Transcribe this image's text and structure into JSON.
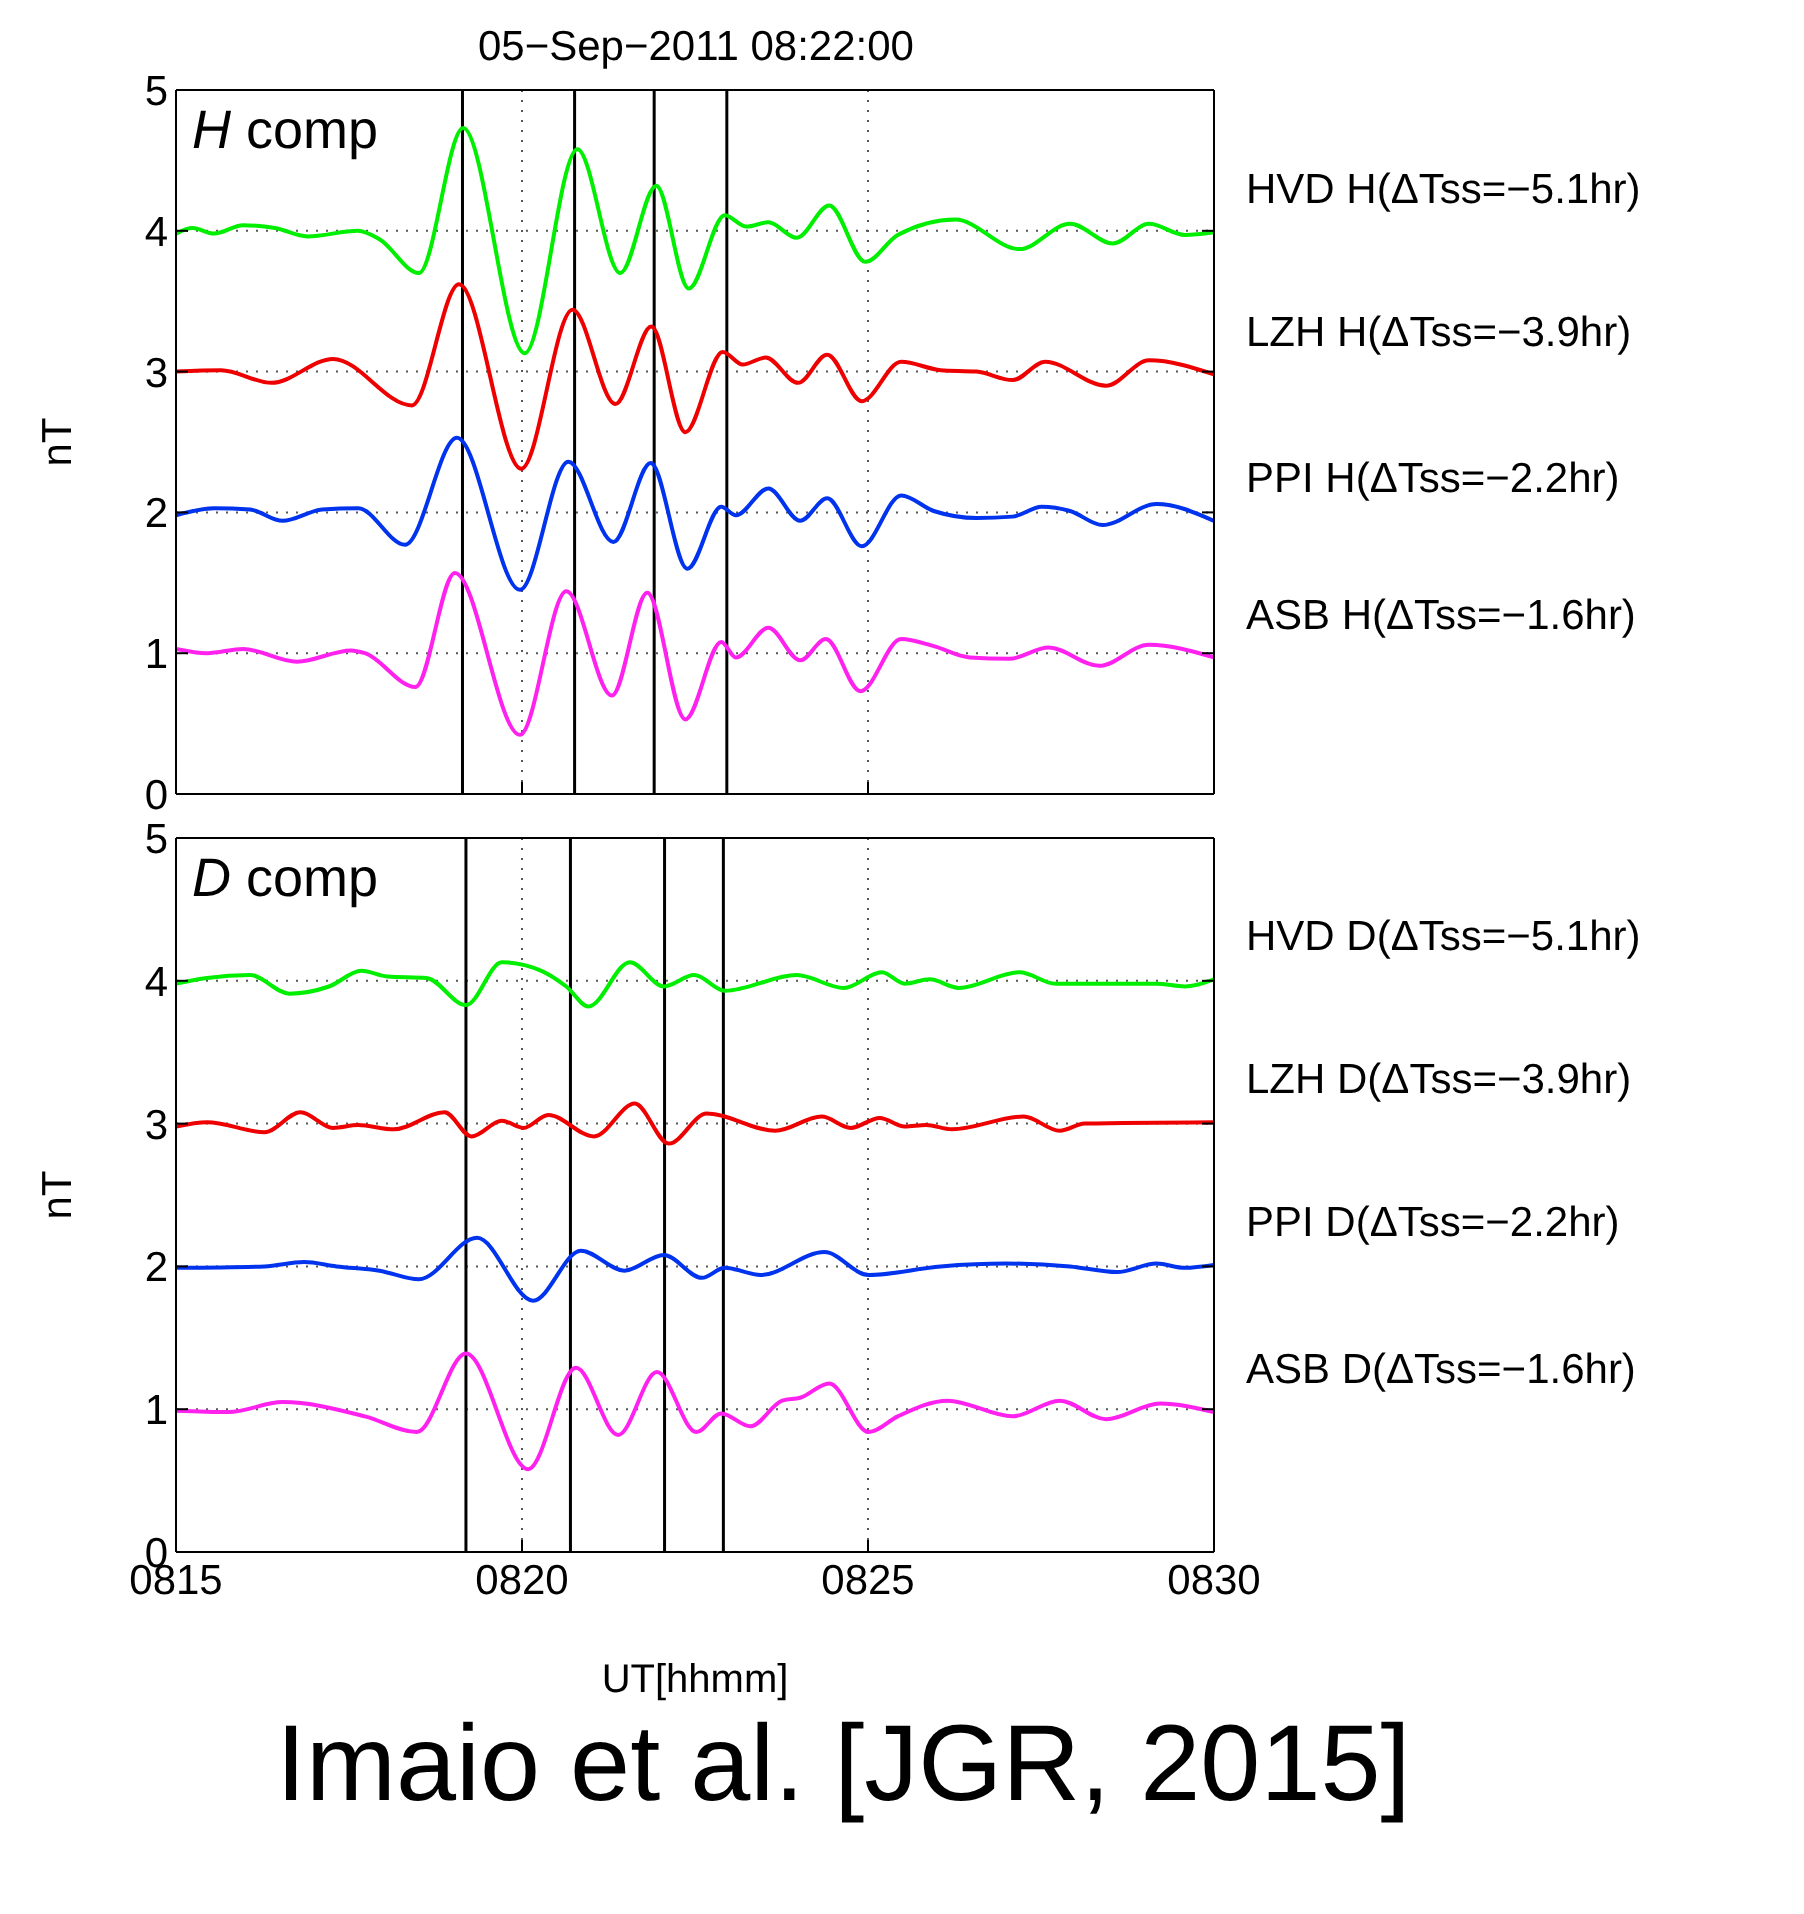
{
  "chart_data": [
    {
      "type": "line",
      "title": "05−Sep−2011 08:22:00",
      "ylabel": "nT",
      "annotations": [
        "H comp"
      ],
      "xlim": [
        815,
        830
      ],
      "xticks": [
        815,
        820,
        825,
        830
      ],
      "ylim": [
        0,
        5
      ],
      "yticks": [
        0,
        1,
        2,
        3,
        4,
        5
      ],
      "grid": true,
      "legend": false,
      "tick_labels": "y",
      "marker": "none",
      "line_style": "solid",
      "ref_lines": [
        {
          "axis": "x",
          "value": 819.14,
          "color": "#000000"
        },
        {
          "axis": "x",
          "value": 820.76,
          "color": "#000000"
        },
        {
          "axis": "x",
          "value": 821.91,
          "color": "#000000"
        },
        {
          "axis": "x",
          "value": 822.96,
          "color": "#000000"
        }
      ],
      "series": [
        {
          "name": "HVD H(ΔTss=−5.1hr)",
          "color": "#00ee00",
          "x": [
            815,
            815.24,
            815.55,
            815.97,
            816.43,
            816.9,
            817.63,
            817.94,
            818.51,
            819.15,
            820.04,
            820.8,
            821.42,
            821.94,
            822.41,
            822.93,
            823.24,
            823.56,
            823.97,
            824.44,
            824.96,
            825.43,
            826.26,
            827.19,
            827.92,
            828.54,
            829.06,
            829.58,
            830
          ],
          "values": [
            3.98,
            4.02,
            3.98,
            4.04,
            4.02,
            3.96,
            4.0,
            3.94,
            3.7,
            4.73,
            3.13,
            4.58,
            3.7,
            4.32,
            3.59,
            4.11,
            4.03,
            4.06,
            3.95,
            4.18,
            3.78,
            3.97,
            4.08,
            3.87,
            4.05,
            3.91,
            4.05,
            3.97,
            3.99
          ]
        },
        {
          "name": "LZH H(ΔTss=−3.9hr)",
          "color": "#ee0000",
          "x": [
            815,
            815.65,
            816.38,
            817.27,
            818.41,
            819.09,
            819.99,
            820.73,
            821.35,
            821.87,
            822.36,
            822.9,
            823.19,
            823.52,
            823.99,
            824.41,
            824.91,
            825.48,
            826.05,
            826.57,
            827.09,
            827.56,
            828.44,
            829.06,
            830
          ],
          "values": [
            3.0,
            3.01,
            2.92,
            3.09,
            2.76,
            3.62,
            2.31,
            3.44,
            2.77,
            3.32,
            2.57,
            3.14,
            3.05,
            3.1,
            2.92,
            3.12,
            2.79,
            3.07,
            3.01,
            3.0,
            2.94,
            3.07,
            2.9,
            3.08,
            2.98
          ]
        },
        {
          "name": "PPI H(ΔTss=−2.2hr)",
          "color": "#0033ee",
          "x": [
            815,
            815.55,
            816.07,
            816.54,
            817.11,
            817.63,
            818.31,
            819.06,
            819.97,
            820.67,
            821.32,
            821.86,
            822.39,
            822.88,
            823.09,
            823.56,
            824.02,
            824.41,
            824.91,
            825.48,
            825.95,
            826.57,
            827.09,
            827.51,
            827.92,
            828.39,
            829.17,
            830
          ],
          "values": [
            1.98,
            2.03,
            2.02,
            1.94,
            2.02,
            2.03,
            1.77,
            2.53,
            1.45,
            2.36,
            1.79,
            2.35,
            1.6,
            2.04,
            1.98,
            2.17,
            1.94,
            2.1,
            1.76,
            2.12,
            2.01,
            1.96,
            1.97,
            2.04,
            2.01,
            1.91,
            2.06,
            1.94
          ]
        },
        {
          "name": "ASB H(ΔTss=−1.6hr)",
          "color": "#ff22ee",
          "x": [
            815,
            815.45,
            815.97,
            816.75,
            817.53,
            817.73,
            818.46,
            819.03,
            819.97,
            820.64,
            821.3,
            821.81,
            822.36,
            822.88,
            823.09,
            823.56,
            824.02,
            824.39,
            824.89,
            825.48,
            825.95,
            826.47,
            827.04,
            827.61,
            828.34,
            829.06,
            830
          ],
          "values": [
            1.03,
            1.0,
            1.03,
            0.94,
            1.02,
            1.0,
            0.76,
            1.57,
            0.42,
            1.44,
            0.7,
            1.43,
            0.53,
            1.08,
            0.97,
            1.18,
            0.95,
            1.1,
            0.73,
            1.1,
            1.05,
            0.97,
            0.96,
            1.04,
            0.91,
            1.06,
            0.97
          ]
        }
      ]
    },
    {
      "type": "line",
      "xlabel": "UT[hhmm]",
      "ylabel": "nT",
      "annotations": [
        "D comp",
        "Imaio et al. [JGR, 2015]"
      ],
      "xlim": [
        815,
        830
      ],
      "xticks": [
        {
          "value": 815,
          "label": "0815"
        },
        {
          "value": 820,
          "label": "0820"
        },
        {
          "value": 825,
          "label": "0825"
        },
        {
          "value": 830,
          "label": "0830"
        }
      ],
      "ylim": [
        0,
        5
      ],
      "yticks": [
        0,
        1,
        2,
        3,
        4,
        5
      ],
      "grid": true,
      "legend": false,
      "marker": "none",
      "line_style": "solid",
      "ref_lines": [
        {
          "axis": "x",
          "value": 819.19,
          "color": "#000000"
        },
        {
          "axis": "x",
          "value": 820.7,
          "color": "#000000"
        },
        {
          "axis": "x",
          "value": 822.06,
          "color": "#000000"
        },
        {
          "axis": "x",
          "value": 822.91,
          "color": "#000000"
        }
      ],
      "series": [
        {
          "name": "HVD D(ΔTss=−5.1hr)",
          "color": "#00ee00",
          "x": [
            815,
            815.45,
            816.07,
            816.64,
            817.21,
            817.68,
            818.05,
            818.62,
            819.19,
            819.71,
            820.28,
            820.64,
            820.96,
            821.56,
            822.05,
            822.49,
            822.93,
            823.97,
            824.65,
            825.2,
            825.53,
            825.89,
            826.31,
            827.19,
            827.71,
            829.17,
            829.58,
            830
          ],
          "values": [
            3.98,
            4.02,
            4.04,
            3.91,
            3.96,
            4.07,
            4.03,
            4.02,
            3.83,
            4.13,
            4.07,
            3.96,
            3.82,
            4.13,
            3.96,
            4.04,
            3.93,
            4.04,
            3.95,
            4.06,
            3.98,
            4.01,
            3.95,
            4.06,
            3.98,
            3.98,
            3.96,
            4.01
          ]
        },
        {
          "name": "LZH D(ΔTss=−3.9hr)",
          "color": "#ee0000",
          "x": [
            815,
            815.45,
            816.28,
            816.8,
            817.27,
            817.63,
            818.15,
            818.88,
            819.27,
            819.71,
            820.02,
            820.38,
            821.04,
            821.63,
            822.12,
            822.67,
            823.66,
            824.33,
            824.75,
            825.17,
            825.53,
            825.84,
            826.21,
            827.25,
            827.77,
            828.13,
            830
          ],
          "values": [
            2.98,
            3.01,
            2.94,
            3.08,
            2.97,
            2.99,
            2.96,
            3.08,
            2.91,
            3.02,
            2.97,
            3.06,
            2.91,
            3.14,
            2.86,
            3.07,
            2.95,
            3.05,
            2.97,
            3.04,
            2.98,
            2.99,
            2.96,
            3.05,
            2.95,
            3.0,
            3.01
          ]
        },
        {
          "name": "PPI D(ΔTss=−2.2hr)",
          "color": "#0033ee",
          "x": [
            815,
            816.28,
            816.85,
            817.32,
            817.94,
            818.51,
            819.35,
            820.16,
            820.85,
            821.48,
            822.05,
            822.6,
            822.93,
            823.45,
            824.37,
            825.01,
            826.05,
            826.99,
            827.92,
            828.6,
            829.17,
            829.58,
            830
          ],
          "values": [
            1.99,
            2.0,
            2.03,
            2.0,
            1.97,
            1.91,
            2.2,
            1.76,
            2.11,
            1.97,
            2.08,
            1.92,
            1.99,
            1.94,
            2.1,
            1.94,
            2.0,
            2.02,
            2.0,
            1.96,
            2.02,
            1.99,
            2.01
          ]
        },
        {
          "name": "ASB D(ΔTss=−1.6hr)",
          "color": "#ff22ee",
          "x": [
            815,
            815.76,
            816.54,
            817.73,
            818.48,
            819.19,
            820.09,
            820.78,
            821.39,
            821.95,
            822.52,
            822.88,
            823.3,
            823.76,
            824.02,
            824.44,
            825.01,
            825.43,
            826.15,
            827.09,
            827.77,
            828.44,
            829.22,
            830
          ],
          "values": [
            0.99,
            0.98,
            1.05,
            0.95,
            0.84,
            1.39,
            0.58,
            1.29,
            0.82,
            1.26,
            0.84,
            0.97,
            0.88,
            1.06,
            1.08,
            1.18,
            0.84,
            0.95,
            1.06,
            0.95,
            1.06,
            0.93,
            1.04,
            0.98
          ]
        }
      ]
    }
  ]
}
